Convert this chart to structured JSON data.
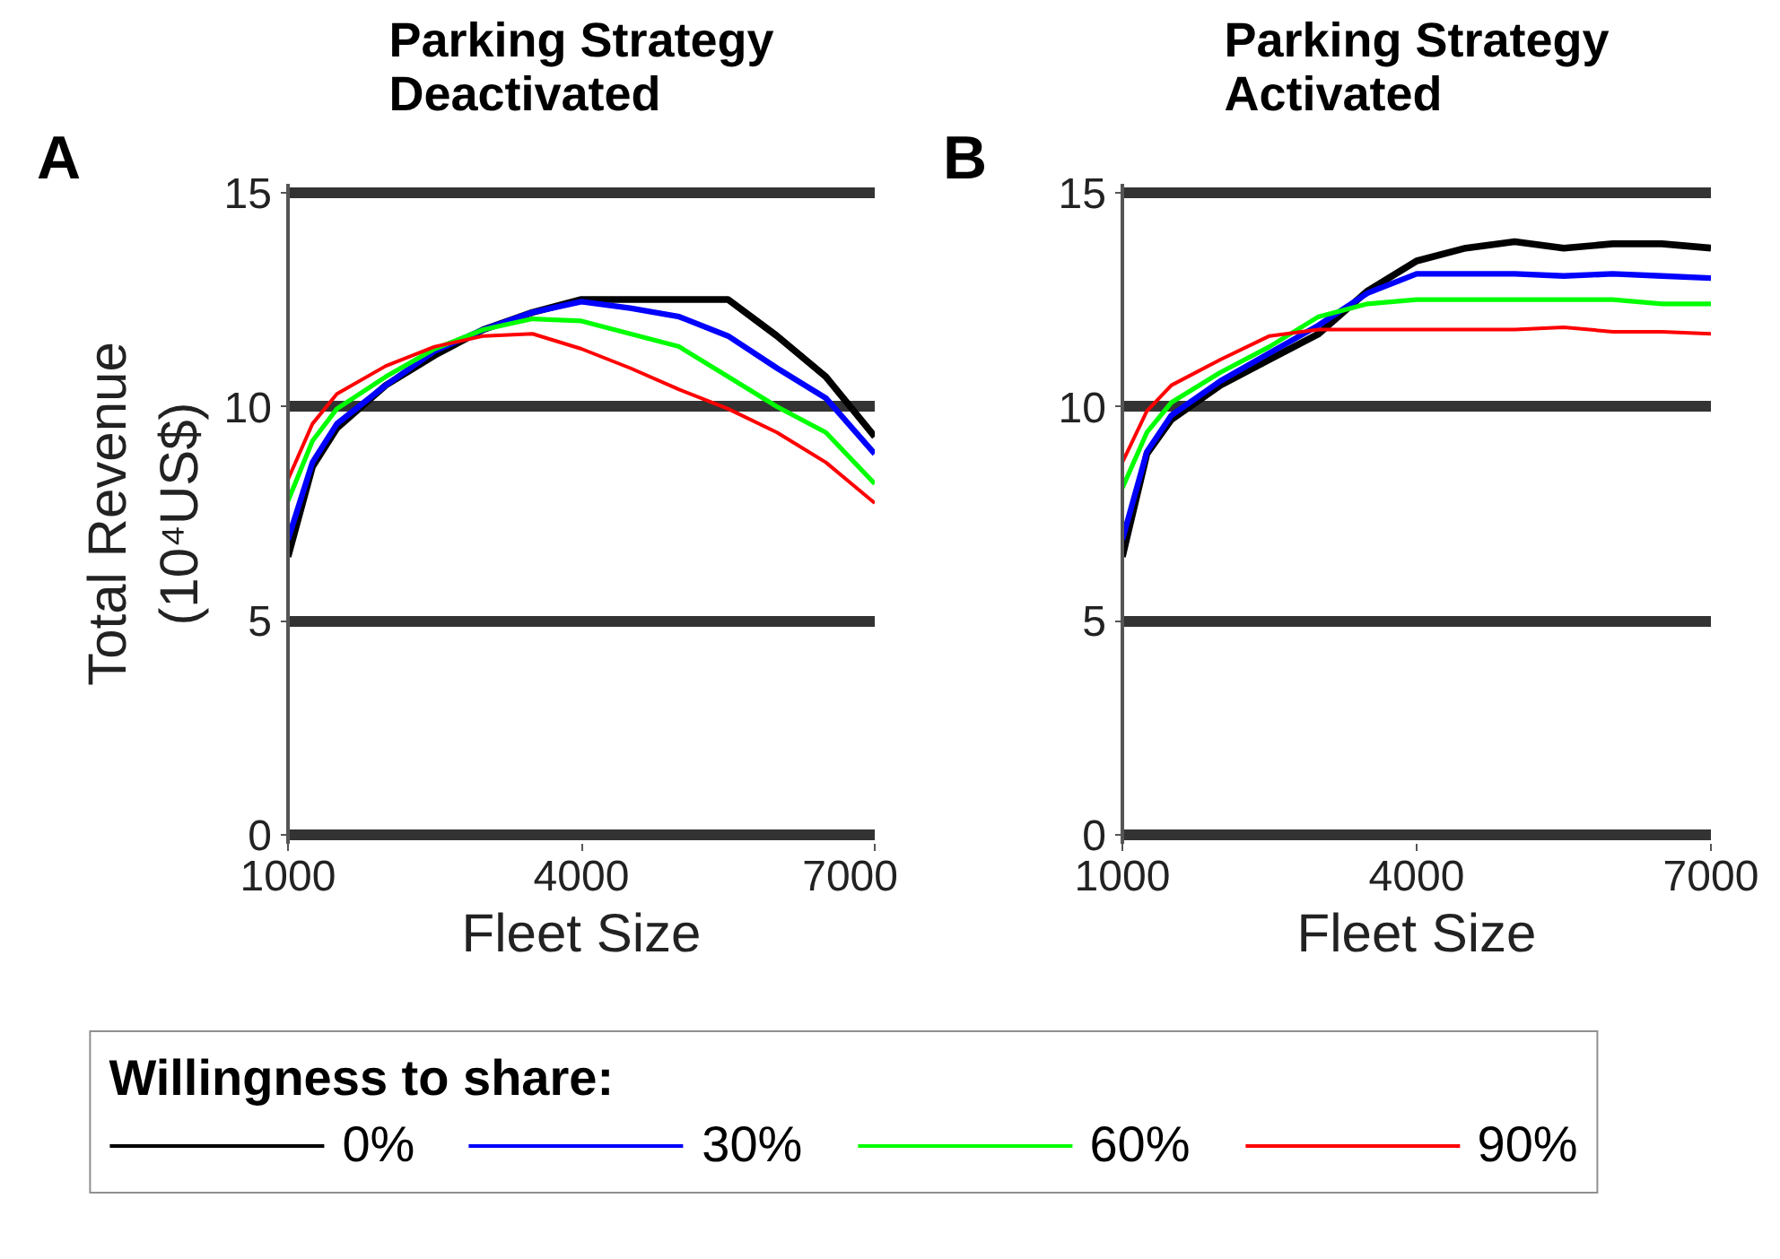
{
  "chart_data": [
    {
      "type": "line",
      "title": "Parking Strategy\nDeactivated",
      "xlabel": "Fleet Size",
      "ylabel": "Total Revenue\n(10⁴US$)",
      "annotations": [
        "A"
      ],
      "legend": "bottom",
      "legend_title": "Willingness to share:",
      "grid": "y",
      "xlim": [
        1000,
        7000
      ],
      "ylim": [
        -0.2,
        15.2
      ],
      "xticks": [
        1000,
        4000,
        7000
      ],
      "yticks": [
        0,
        5,
        10,
        15
      ],
      "x": [
        1000,
        1250,
        1500,
        2000,
        2500,
        3000,
        3500,
        4000,
        4500,
        5000,
        5500,
        6000,
        6500,
        7000
      ],
      "series": [
        {
          "name": "0%",
          "color": "#000000",
          "values": [
            6.5,
            8.6,
            9.5,
            10.5,
            11.2,
            11.8,
            12.2,
            12.5,
            12.5,
            12.5,
            12.5,
            11.65,
            10.7,
            9.3
          ]
        },
        {
          "name": "30%",
          "color": "#0000ff",
          "values": [
            6.9,
            8.7,
            9.6,
            10.5,
            11.3,
            11.8,
            12.2,
            12.45,
            12.3,
            12.1,
            11.65,
            10.9,
            10.2,
            8.9
          ]
        },
        {
          "name": "60%",
          "color": "#00ff00",
          "values": [
            7.8,
            9.2,
            9.95,
            10.7,
            11.35,
            11.8,
            12.05,
            12.0,
            11.7,
            11.4,
            10.7,
            10.0,
            9.4,
            8.2
          ]
        },
        {
          "name": "90%",
          "color": "#ff0000",
          "values": [
            8.3,
            9.6,
            10.3,
            10.95,
            11.4,
            11.65,
            11.7,
            11.35,
            10.9,
            10.4,
            9.95,
            9.4,
            8.7,
            7.75
          ]
        }
      ]
    },
    {
      "type": "line",
      "title": "Parking Strategy\nActivated",
      "xlabel": "Fleet Size",
      "annotations": [
        "B"
      ],
      "grid": "y",
      "xlim": [
        1000,
        7000
      ],
      "ylim": [
        -0.2,
        15.2
      ],
      "xticks": [
        1000,
        4000,
        7000
      ],
      "yticks": [
        0,
        5,
        10,
        15
      ],
      "x": [
        1000,
        1250,
        1500,
        2000,
        2500,
        3000,
        3500,
        4000,
        4500,
        5000,
        5500,
        6000,
        6500,
        7000
      ],
      "series": [
        {
          "color": "#000000",
          "values": [
            6.5,
            8.9,
            9.7,
            10.5,
            11.1,
            11.7,
            12.7,
            13.4,
            13.7,
            13.85,
            13.7,
            13.8,
            13.8,
            13.7
          ]
        },
        {
          "color": "#0000ff",
          "values": [
            6.9,
            8.95,
            9.8,
            10.6,
            11.25,
            11.9,
            12.65,
            13.1,
            13.1,
            13.1,
            13.05,
            13.1,
            13.05,
            13.0
          ]
        },
        {
          "color": "#00ff00",
          "values": [
            8.1,
            9.4,
            10.1,
            10.8,
            11.4,
            12.1,
            12.4,
            12.5,
            12.5,
            12.5,
            12.5,
            12.5,
            12.4,
            12.4
          ]
        },
        {
          "color": "#ff0000",
          "values": [
            8.7,
            9.9,
            10.5,
            11.1,
            11.65,
            11.8,
            11.8,
            11.8,
            11.8,
            11.8,
            11.85,
            11.75,
            11.75,
            11.7
          ]
        }
      ]
    }
  ]
}
